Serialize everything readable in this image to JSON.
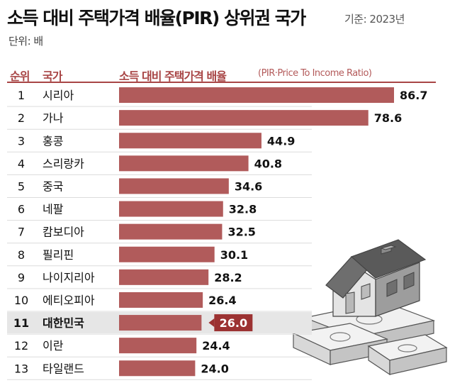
{
  "title": "소득 대비 주택가격 배율(PIR) 상위권 국가",
  "basis": "기준: 2023년",
  "unit": "단위: 배",
  "headers": {
    "rank": "순위",
    "country": "국가",
    "metric": "소득 대비 주택가격 배율",
    "metric_sub": "(PIR·Price To Income Ratio)"
  },
  "colors": {
    "bar": "#b15b5b",
    "header": "#a84545",
    "highlight_badge": "#9c3232",
    "highlight_row": "#e6e6e6"
  },
  "illustration": "house-on-money-stacks-icon",
  "chart_data": {
    "type": "bar",
    "orientation": "horizontal",
    "title": "소득 대비 주택가격 배율(PIR) 상위권 국가",
    "unit": "배",
    "ranks": [
      "1",
      "2",
      "3",
      "4",
      "5",
      "6",
      "7",
      "8",
      "9",
      "10",
      "11",
      "12",
      "13"
    ],
    "categories": [
      "시리아",
      "가나",
      "홍콩",
      "스리랑카",
      "중국",
      "네팔",
      "캄보디아",
      "필리핀",
      "나이지리아",
      "에티오피아",
      "대한민국",
      "이란",
      "타일랜드"
    ],
    "values": [
      86.7,
      78.6,
      44.9,
      40.8,
      34.6,
      32.8,
      32.5,
      30.1,
      28.2,
      26.4,
      26.0,
      24.4,
      24.0
    ],
    "value_labels": [
      "86.7",
      "78.6",
      "44.9",
      "40.8",
      "34.6",
      "32.8",
      "32.5",
      "30.1",
      "28.2",
      "26.4",
      "26.0",
      "24.4",
      "24.0"
    ],
    "highlight_index": 10,
    "xlim": [
      0,
      86.7
    ]
  }
}
